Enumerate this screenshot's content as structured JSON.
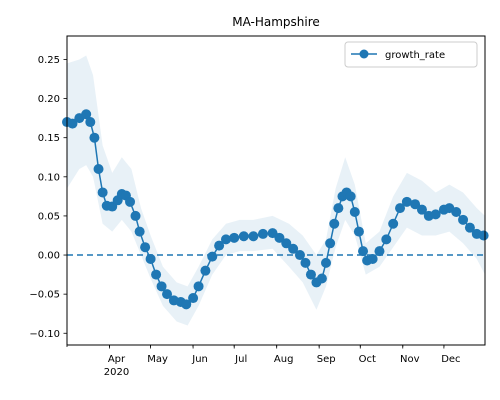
{
  "chart_data": {
    "type": "line",
    "title": "MA-Hampshire",
    "xlabel": "",
    "ylabel": "",
    "xlim": [
      "2020-03-01",
      "2020-12-31"
    ],
    "ylim": [
      -0.115,
      0.28
    ],
    "x_ticks": [
      {
        "date": "2020-04-01",
        "label": "Apr",
        "sublabel": "2020"
      },
      {
        "date": "2020-05-01",
        "label": "May",
        "sublabel": ""
      },
      {
        "date": "2020-06-01",
        "label": "Jun",
        "sublabel": ""
      },
      {
        "date": "2020-07-01",
        "label": "Jul",
        "sublabel": ""
      },
      {
        "date": "2020-08-01",
        "label": "Aug",
        "sublabel": ""
      },
      {
        "date": "2020-09-01",
        "label": "Sep",
        "sublabel": ""
      },
      {
        "date": "2020-10-01",
        "label": "Oct",
        "sublabel": ""
      },
      {
        "date": "2020-11-01",
        "label": "Nov",
        "sublabel": ""
      },
      {
        "date": "2020-12-01",
        "label": "Dec",
        "sublabel": ""
      }
    ],
    "y_ticks": [
      {
        "value": -0.1,
        "label": "−0.10"
      },
      {
        "value": -0.05,
        "label": "−0.05"
      },
      {
        "value": 0.0,
        "label": "0.00"
      },
      {
        "value": 0.05,
        "label": "0.05"
      },
      {
        "value": 0.1,
        "label": "0.10"
      },
      {
        "value": 0.15,
        "label": "0.15"
      },
      {
        "value": 0.2,
        "label": "0.20"
      },
      {
        "value": 0.25,
        "label": "0.25"
      }
    ],
    "reference_line": {
      "y": 0.0,
      "style": "dashed",
      "color": "#1f77b4"
    },
    "series": [
      {
        "name": "growth_rate",
        "color": "#1f77b4",
        "marker": "circle",
        "points": [
          {
            "x": "2020-03-01",
            "y": 0.17
          },
          {
            "x": "2020-03-05",
            "y": 0.168
          },
          {
            "x": "2020-03-10",
            "y": 0.175
          },
          {
            "x": "2020-03-15",
            "y": 0.18
          },
          {
            "x": "2020-03-18",
            "y": 0.17
          },
          {
            "x": "2020-03-21",
            "y": 0.15
          },
          {
            "x": "2020-03-24",
            "y": 0.11
          },
          {
            "x": "2020-03-27",
            "y": 0.08
          },
          {
            "x": "2020-03-30",
            "y": 0.063
          },
          {
            "x": "2020-04-03",
            "y": 0.062
          },
          {
            "x": "2020-04-07",
            "y": 0.07
          },
          {
            "x": "2020-04-10",
            "y": 0.078
          },
          {
            "x": "2020-04-13",
            "y": 0.076
          },
          {
            "x": "2020-04-16",
            "y": 0.068
          },
          {
            "x": "2020-04-20",
            "y": 0.05
          },
          {
            "x": "2020-04-23",
            "y": 0.03
          },
          {
            "x": "2020-04-27",
            "y": 0.01
          },
          {
            "x": "2020-05-01",
            "y": -0.005
          },
          {
            "x": "2020-05-05",
            "y": -0.025
          },
          {
            "x": "2020-05-09",
            "y": -0.04
          },
          {
            "x": "2020-05-13",
            "y": -0.05
          },
          {
            "x": "2020-05-18",
            "y": -0.058
          },
          {
            "x": "2020-05-23",
            "y": -0.06
          },
          {
            "x": "2020-05-27",
            "y": -0.063
          },
          {
            "x": "2020-06-01",
            "y": -0.055
          },
          {
            "x": "2020-06-05",
            "y": -0.04
          },
          {
            "x": "2020-06-10",
            "y": -0.02
          },
          {
            "x": "2020-06-15",
            "y": -0.002
          },
          {
            "x": "2020-06-20",
            "y": 0.012
          },
          {
            "x": "2020-06-25",
            "y": 0.02
          },
          {
            "x": "2020-07-01",
            "y": 0.022
          },
          {
            "x": "2020-07-08",
            "y": 0.024
          },
          {
            "x": "2020-07-15",
            "y": 0.024
          },
          {
            "x": "2020-07-22",
            "y": 0.027
          },
          {
            "x": "2020-07-29",
            "y": 0.028
          },
          {
            "x": "2020-08-03",
            "y": 0.022
          },
          {
            "x": "2020-08-08",
            "y": 0.015
          },
          {
            "x": "2020-08-13",
            "y": 0.008
          },
          {
            "x": "2020-08-18",
            "y": 0.0
          },
          {
            "x": "2020-08-22",
            "y": -0.01
          },
          {
            "x": "2020-08-26",
            "y": -0.025
          },
          {
            "x": "2020-08-30",
            "y": -0.035
          },
          {
            "x": "2020-09-03",
            "y": -0.03
          },
          {
            "x": "2020-09-06",
            "y": -0.01
          },
          {
            "x": "2020-09-09",
            "y": 0.015
          },
          {
            "x": "2020-09-12",
            "y": 0.04
          },
          {
            "x": "2020-09-15",
            "y": 0.06
          },
          {
            "x": "2020-09-18",
            "y": 0.075
          },
          {
            "x": "2020-09-21",
            "y": 0.08
          },
          {
            "x": "2020-09-24",
            "y": 0.075
          },
          {
            "x": "2020-09-27",
            "y": 0.055
          },
          {
            "x": "2020-09-30",
            "y": 0.03
          },
          {
            "x": "2020-10-03",
            "y": 0.005
          },
          {
            "x": "2020-10-06",
            "y": -0.007
          },
          {
            "x": "2020-10-10",
            "y": -0.005
          },
          {
            "x": "2020-10-15",
            "y": 0.005
          },
          {
            "x": "2020-10-20",
            "y": 0.02
          },
          {
            "x": "2020-10-25",
            "y": 0.04
          },
          {
            "x": "2020-10-30",
            "y": 0.06
          },
          {
            "x": "2020-11-04",
            "y": 0.068
          },
          {
            "x": "2020-11-10",
            "y": 0.065
          },
          {
            "x": "2020-11-15",
            "y": 0.058
          },
          {
            "x": "2020-11-20",
            "y": 0.05
          },
          {
            "x": "2020-11-25",
            "y": 0.052
          },
          {
            "x": "2020-12-01",
            "y": 0.058
          },
          {
            "x": "2020-12-05",
            "y": 0.06
          },
          {
            "x": "2020-12-10",
            "y": 0.055
          },
          {
            "x": "2020-12-15",
            "y": 0.045
          },
          {
            "x": "2020-12-20",
            "y": 0.035
          },
          {
            "x": "2020-12-25",
            "y": 0.027
          },
          {
            "x": "2020-12-30",
            "y": 0.025
          }
        ],
        "band": [
          {
            "x": "2020-03-01",
            "lower": 0.085,
            "upper": 0.245
          },
          {
            "x": "2020-03-10",
            "lower": 0.11,
            "upper": 0.25
          },
          {
            "x": "2020-03-15",
            "lower": 0.115,
            "upper": 0.255
          },
          {
            "x": "2020-03-20",
            "lower": 0.1,
            "upper": 0.23
          },
          {
            "x": "2020-03-27",
            "lower": 0.04,
            "upper": 0.14
          },
          {
            "x": "2020-04-03",
            "lower": 0.03,
            "upper": 0.105
          },
          {
            "x": "2020-04-10",
            "lower": 0.045,
            "upper": 0.125
          },
          {
            "x": "2020-04-17",
            "lower": 0.03,
            "upper": 0.11
          },
          {
            "x": "2020-04-24",
            "lower": 0.0,
            "upper": 0.06
          },
          {
            "x": "2020-05-01",
            "lower": -0.03,
            "upper": 0.025
          },
          {
            "x": "2020-05-10",
            "lower": -0.065,
            "upper": -0.015
          },
          {
            "x": "2020-05-20",
            "lower": -0.085,
            "upper": -0.035
          },
          {
            "x": "2020-05-28",
            "lower": -0.09,
            "upper": -0.04
          },
          {
            "x": "2020-06-05",
            "lower": -0.065,
            "upper": -0.015
          },
          {
            "x": "2020-06-15",
            "lower": -0.025,
            "upper": 0.02
          },
          {
            "x": "2020-06-25",
            "lower": 0.0,
            "upper": 0.04
          },
          {
            "x": "2020-07-05",
            "lower": 0.005,
            "upper": 0.045
          },
          {
            "x": "2020-07-15",
            "lower": 0.005,
            "upper": 0.045
          },
          {
            "x": "2020-07-29",
            "lower": 0.008,
            "upper": 0.05
          },
          {
            "x": "2020-08-10",
            "lower": -0.015,
            "upper": 0.04
          },
          {
            "x": "2020-08-20",
            "lower": -0.035,
            "upper": 0.025
          },
          {
            "x": "2020-08-30",
            "lower": -0.07,
            "upper": 0.0
          },
          {
            "x": "2020-09-06",
            "lower": -0.04,
            "upper": 0.02
          },
          {
            "x": "2020-09-13",
            "lower": 0.01,
            "upper": 0.085
          },
          {
            "x": "2020-09-20",
            "lower": 0.045,
            "upper": 0.125
          },
          {
            "x": "2020-09-27",
            "lower": 0.025,
            "upper": 0.09
          },
          {
            "x": "2020-10-05",
            "lower": -0.025,
            "upper": 0.015
          },
          {
            "x": "2020-10-15",
            "lower": -0.015,
            "upper": 0.03
          },
          {
            "x": "2020-10-25",
            "lower": 0.01,
            "upper": 0.075
          },
          {
            "x": "2020-11-04",
            "lower": 0.035,
            "upper": 0.105
          },
          {
            "x": "2020-11-15",
            "lower": 0.025,
            "upper": 0.095
          },
          {
            "x": "2020-11-25",
            "lower": 0.025,
            "upper": 0.08
          },
          {
            "x": "2020-12-05",
            "lower": 0.03,
            "upper": 0.09
          },
          {
            "x": "2020-12-15",
            "lower": 0.015,
            "upper": 0.08
          },
          {
            "x": "2020-12-25",
            "lower": -0.005,
            "upper": 0.06
          },
          {
            "x": "2020-12-31",
            "lower": -0.025,
            "upper": 0.05
          }
        ]
      }
    ],
    "legend": {
      "position": "top-right"
    },
    "grid": false
  }
}
